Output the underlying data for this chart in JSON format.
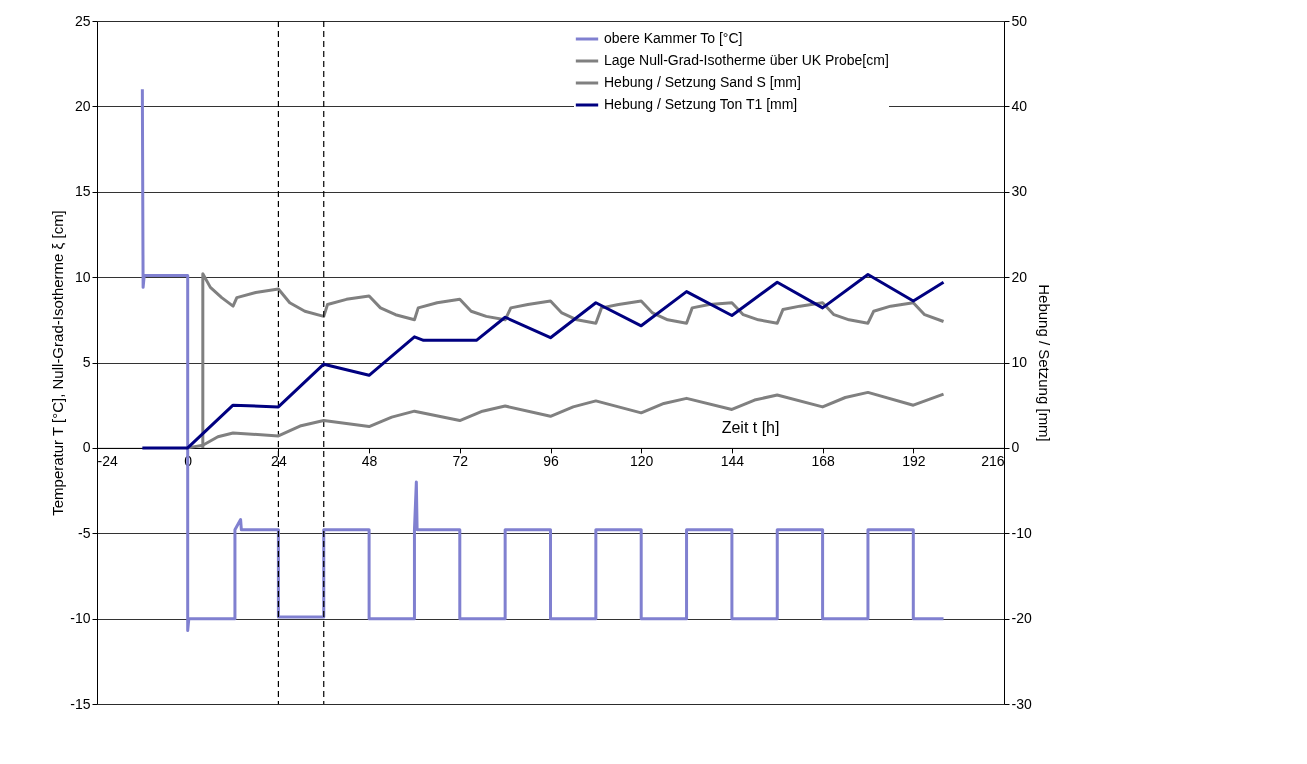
{
  "chart_data": {
    "type": "line",
    "xlabel": "Zeit t [h]",
    "ylabel": "Temperatur T [°C], Null-Grad-Isotherme ξ [cm]",
    "y2label": "Hebung / Setzung [mm]",
    "xlim": [
      -24,
      216
    ],
    "xticks": [
      -24,
      0,
      24,
      48,
      72,
      96,
      120,
      144,
      168,
      192,
      216
    ],
    "ylim": [
      -15,
      25
    ],
    "yticks": [
      -15,
      -10,
      -5,
      0,
      5,
      10,
      15,
      20,
      25
    ],
    "y2lim": [
      -30,
      50
    ],
    "y2ticks": [
      -30,
      -20,
      -10,
      0,
      10,
      20,
      30,
      40,
      50
    ],
    "grid": "y",
    "legend": "top right",
    "ref_lines": [
      {
        "axis": "x",
        "value": 24,
        "line_style": "dashed",
        "color": "#000000"
      },
      {
        "axis": "x",
        "value": 36,
        "line_style": "dashed",
        "color": "#000000"
      }
    ],
    "series": [
      {
        "name": "obere Kammer To [°C]",
        "color": "#8080d0",
        "x": [
          -12,
          -11.8,
          -11.5,
          0,
          0,
          0.3,
          12.5,
          12.5,
          14,
          14.2,
          24,
          24,
          36,
          36,
          48,
          48,
          60,
          60,
          60.5,
          60.7,
          72,
          72,
          84,
          84,
          96,
          96,
          108,
          108,
          120,
          120,
          132,
          132,
          144,
          144,
          156,
          156,
          168,
          168,
          180,
          180,
          192,
          192,
          200
        ],
        "values": [
          21,
          9.4,
          10.1,
          10.1,
          -10.7,
          -10,
          -10,
          -4.8,
          -4.2,
          -4.8,
          -4.8,
          -9.9,
          -9.9,
          -4.8,
          -4.8,
          -10,
          -10,
          -4.8,
          -2,
          -4.8,
          -4.8,
          -10,
          -10,
          -4.8,
          -4.8,
          -10,
          -10,
          -4.8,
          -4.8,
          -10,
          -10,
          -4.8,
          -4.8,
          -10,
          -10,
          -4.8,
          -4.8,
          -10,
          -10,
          -4.8,
          -4.8,
          -10,
          -10
        ]
      },
      {
        "name": "Lage Null-Grad-Isotherme über UK Probe[cm]",
        "color": "#808080",
        "x": [
          4,
          4,
          6,
          9,
          12,
          13,
          18,
          24,
          27,
          31,
          36,
          37,
          42,
          48,
          51,
          55,
          60,
          61,
          66,
          72,
          75,
          79,
          84,
          85.5,
          90,
          96,
          99,
          103,
          108,
          109.5,
          114,
          120,
          123,
          127,
          132,
          133.5,
          138,
          144,
          147,
          151,
          156,
          157.5,
          162,
          168,
          171,
          175,
          180,
          181.5,
          186,
          192,
          195,
          200
        ],
        "values": [
          0,
          10.2,
          9.4,
          8.8,
          8.3,
          8.8,
          9.1,
          9.3,
          8.5,
          8.0,
          7.7,
          8.4,
          8.7,
          8.9,
          8.2,
          7.8,
          7.5,
          8.2,
          8.5,
          8.7,
          8.0,
          7.7,
          7.5,
          8.2,
          8.4,
          8.6,
          7.9,
          7.5,
          7.3,
          8.2,
          8.4,
          8.6,
          7.9,
          7.5,
          7.3,
          8.2,
          8.4,
          8.5,
          7.8,
          7.5,
          7.3,
          8.1,
          8.3,
          8.5,
          7.8,
          7.5,
          7.3,
          8.0,
          8.3,
          8.5,
          7.8,
          7.4
        ]
      },
      {
        "name": "Hebung / Setzung Sand S [mm]",
        "color": "#808080",
        "axis": "y2",
        "x": [
          0,
          4,
          8,
          12,
          24,
          30,
          36,
          48,
          54,
          60,
          72,
          78,
          84,
          96,
          102,
          108,
          120,
          126,
          132,
          144,
          150,
          156,
          168,
          174,
          180,
          192,
          200
        ],
        "values": [
          0,
          0.3,
          1.3,
          1.75,
          1.4,
          2.6,
          3.2,
          2.5,
          3.6,
          4.3,
          3.2,
          4.3,
          4.9,
          3.7,
          4.8,
          5.5,
          4.1,
          5.2,
          5.8,
          4.5,
          5.6,
          6.2,
          4.8,
          5.9,
          6.5,
          5.0,
          6.3
        ]
      },
      {
        "name": "Hebung / Setzung Ton T1 [mm]",
        "color": "#000080",
        "axis": "y2",
        "x": [
          -12,
          0,
          12,
          24,
          36,
          48,
          60,
          62.4,
          76.4,
          84,
          96,
          108,
          120,
          132,
          144,
          156,
          168,
          180,
          192,
          200
        ],
        "values": [
          0,
          0,
          5.0,
          4.8,
          9.8,
          8.5,
          13.0,
          12.6,
          12.6,
          15.3,
          12.9,
          17.0,
          14.3,
          18.3,
          15.5,
          19.4,
          16.4,
          20.3,
          17.2,
          19.4
        ]
      }
    ]
  }
}
